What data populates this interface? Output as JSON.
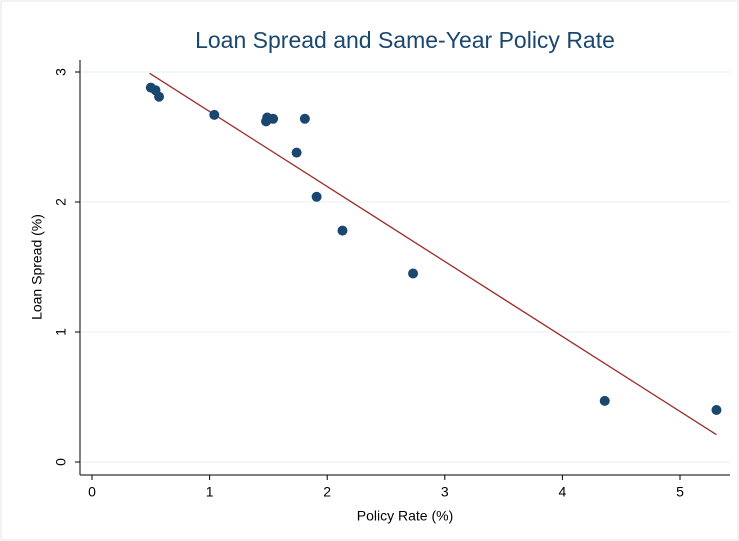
{
  "chart_data": {
    "type": "scatter",
    "title": "Loan Spread and Same-Year Policy Rate",
    "x_label": "Policy Rate (%)",
    "y_label": "Loan Spread (%)",
    "series": [
      {
        "name": "Loan Spread",
        "color": "#1a476f",
        "x": [
          0.5,
          0.54,
          0.57,
          1.04,
          1.49,
          1.48,
          1.54,
          1.81,
          1.74,
          1.91,
          2.13,
          2.73,
          4.36,
          5.31
        ],
        "values": [
          2.88,
          2.86,
          2.81,
          2.67,
          2.65,
          2.62,
          2.64,
          2.64,
          2.38,
          2.04,
          1.78,
          1.45,
          0.47,
          0.4
        ]
      }
    ],
    "fit_line": {
      "color": "#9b2d2d",
      "x": [
        0.49,
        5.31
      ],
      "values": [
        2.99,
        0.21
      ]
    },
    "xlim": [
      0,
      5
    ],
    "xticks": [
      0,
      1,
      2,
      3,
      4,
      5
    ],
    "ylim": [
      0,
      3
    ],
    "yticks": [
      0,
      1,
      2,
      3
    ],
    "grid": true
  }
}
